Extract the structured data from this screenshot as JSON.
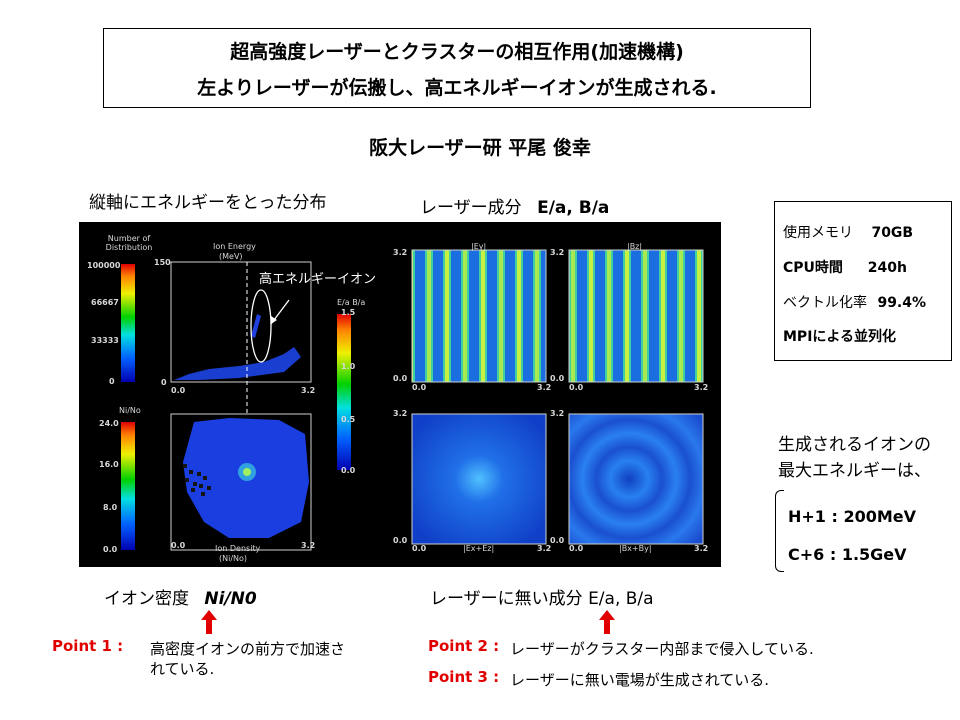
{
  "title": {
    "line1": "超高強度レーザーとクラスターの相互作用(加速機構)",
    "line2": "左よりレーザーが伝搬し、高エネルギーイオンが生成される."
  },
  "author": "阪大レーザー研 平尾 俊幸",
  "captions": {
    "left_top": "縦軸にエネルギーをとった分布",
    "right_top_prefix": "レーザー成分",
    "right_top_formula": "E/a, B/a",
    "bottom_left_prefix": "イオン密度",
    "bottom_left_formula": "Ni/N0",
    "bottom_right": "レーザーに無い成分 E/a, B/a"
  },
  "panel": {
    "cb1_title": "Number of Distribution",
    "cb1_ticks": [
      "100000",
      "66667",
      "33333",
      "0"
    ],
    "ion_energy_title": "Ion Energy",
    "ion_energy_unit": "(MeV)",
    "ion_energy_ymax": "150",
    "ion_energy_ymin": "0",
    "cb2_title": "Ni/No",
    "cb2_ticks": [
      "24.0",
      "16.0",
      "8.0",
      "0.0"
    ],
    "ion_density_title": "Ion Density",
    "ion_density_unit": "(Ni/No)",
    "cb3_title": "E/a   B/a",
    "cb3_ticks": [
      "1.5",
      "1.0",
      "0.5",
      "0.0"
    ],
    "x0": "0.0",
    "x1": "3.2",
    "y0": "0.0",
    "y1": "3.2",
    "ey_label": "|Ey|",
    "bz_label": "|Bz|",
    "exez_label": "|Ex+Ez|",
    "bxby_label": "|Bx+By|",
    "annotation": "高エネルギーイオン"
  },
  "stats": [
    {
      "label": "使用メモリ",
      "value": "70GB"
    },
    {
      "label": "CPU時間",
      "value": "240h"
    },
    {
      "label": "ベクトル化率",
      "value": "99.4%"
    },
    {
      "label": "MPIによる並列化",
      "value": ""
    }
  ],
  "result": {
    "line1": "生成されるイオンの",
    "line2": "最大エネルギーは、",
    "h": "H+1 : 200MeV",
    "c": "C+6 : 1.5GeV"
  },
  "points": [
    {
      "label": "Point 1 :",
      "text1": "高密度イオンの前方で加速さ",
      "text2": "れている."
    },
    {
      "label": "Point 2 :",
      "text1": "レーザーがクラスター内部まで侵入している."
    },
    {
      "label": "Point 3 :",
      "text1": "レーザーに無い電場が生成されている."
    }
  ],
  "colors": {
    "accent_red": "#e00000",
    "panel_bg": "#000000"
  }
}
